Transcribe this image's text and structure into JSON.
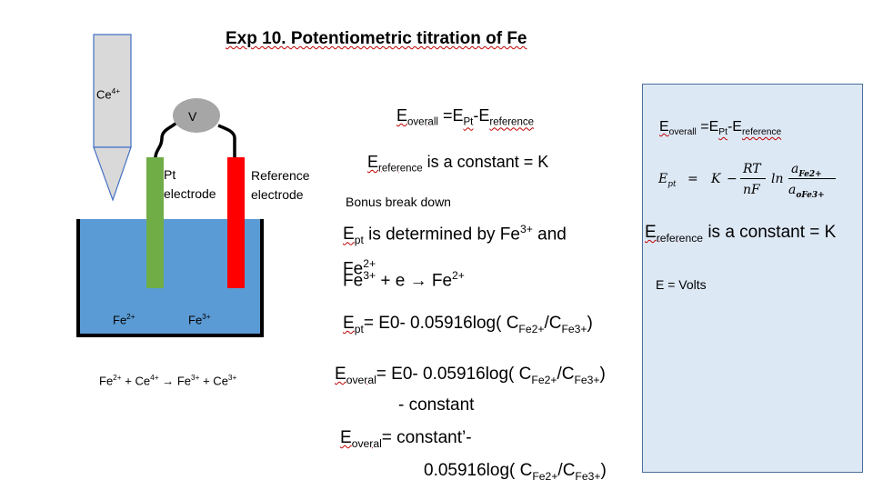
{
  "title": "Exp 10. Potentiometric titration of Fe",
  "apparatus": {
    "burette_label": "Ce",
    "burette_label_sup": "4+",
    "voltmeter_label": "V",
    "pt_label_line1": "Pt",
    "pt_label_line2": "electrode",
    "ref_label_line1": "Reference",
    "ref_label_line2": "electrode",
    "ion_left": "Fe",
    "ion_left_sup": "2+",
    "ion_right": "Fe",
    "ion_right_sup": "3+",
    "colors": {
      "burette_fill": "#d9d9d9",
      "burette_stroke": "#4472c4",
      "solution": "#5b9bd5",
      "pt_electrode": "#70ad47",
      "ref_electrode": "#ff0000",
      "voltmeter": "#a6a6a6"
    }
  },
  "reaction": {
    "r1": "Fe",
    "r1_sup": "2+",
    "plus1": " + Ce",
    "r2_sup": "4+",
    "arrow": "→",
    "p1": " Fe",
    "p1_sup": "3+",
    "plus2": " + Ce",
    "p2_sup": "3+"
  },
  "middle": {
    "e_overall": {
      "e": "E",
      "sub1": "overall",
      "eq": " =E",
      "sub2": "Pt",
      "minus": "-E",
      "sub3": "reference"
    },
    "e_reference": {
      "e": "E",
      "sub": "reference",
      "rest": " is a constant = K"
    },
    "bonus": "Bonus break down",
    "ept_det": {
      "e": "E",
      "sub": "pt",
      "rest1": " is determined by Fe",
      "sup1": "3+",
      "rest2": " and",
      "line2": "Fe",
      "sup2": "2+"
    },
    "half_rx": {
      "a": "Fe",
      "a_sup": "3+",
      "mid": " + e ",
      "arrow": "→",
      "b": " Fe",
      "b_sup": "2+"
    },
    "nernst": {
      "e": "E",
      "sub": "pt",
      "rest": "= E0- 0.05916log( C",
      "s1": "Fe2+",
      "slash": "/C",
      "s2": "Fe3+",
      "close": ")"
    },
    "overal1": {
      "e": "E",
      "sub": "overal",
      "rest": "= E0- 0.05916log( C",
      "s1": "Fe2+",
      "slash": "/C",
      "s2": "Fe3+",
      "close": ")",
      "line2": "- constant"
    },
    "overal2": {
      "e": "E",
      "sub": "overal",
      "rest": "= constant’-",
      "line2a": "0.05916log( C",
      "s1": "Fe2+",
      "slash": "/C",
      "s2": "Fe3+",
      "close": ")"
    }
  },
  "panel": {
    "e_overall": {
      "e": "E",
      "sub1": "overall",
      "eq": " =E",
      "sub2": "Pt",
      "minus": "-E",
      "sub3": "reference"
    },
    "formula": {
      "lhs": "E",
      "lhs_sub": "pt",
      "eq": "=",
      "k": "K",
      "minus": "−",
      "num": "RT",
      "den": "nF",
      "ln": "ln",
      "num2": "a",
      "num2_sub": "Fe2+",
      "den2": "a",
      "den2_sub": "oFe3+"
    },
    "e_reference": {
      "e": "E",
      "sub": "reference",
      "rest": " is a constant = K"
    },
    "volts": "E = Volts"
  }
}
